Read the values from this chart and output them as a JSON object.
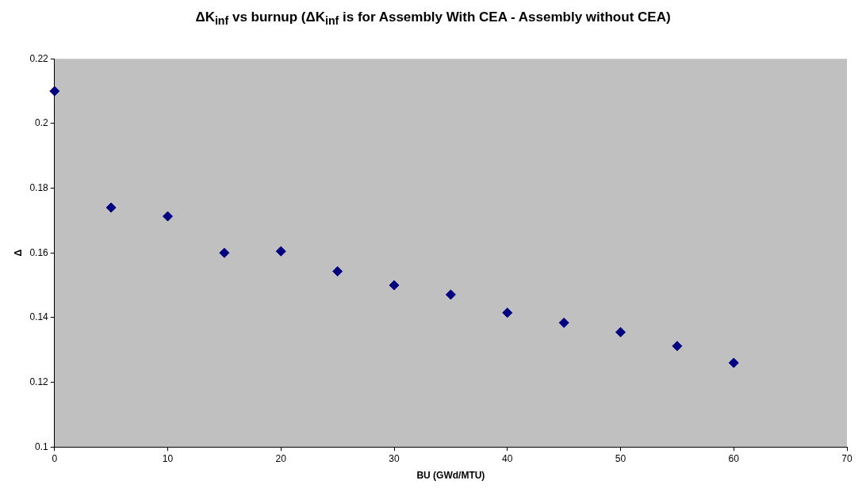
{
  "chart_data": {
    "type": "scatter",
    "title": "ΔK$_{inf}$ vs burnup (ΔK$_{inf}$ is for Assembly With CEA - Assembly without CEA)",
    "xlabel": "BU (GWd/MTU)",
    "ylabel": "Δ",
    "x": [
      0,
      5,
      10,
      15,
      20,
      25,
      30,
      35,
      40,
      45,
      50,
      55,
      60
    ],
    "series": [
      {
        "color": "#000080",
        "values": [
          0.21,
          0.174,
          0.1713,
          0.16,
          0.1605,
          0.1543,
          0.15,
          0.1471,
          0.1415,
          0.1384,
          0.1355,
          0.1312,
          0.126
        ]
      }
    ],
    "xlim": [
      0,
      70
    ],
    "xticks": [
      0,
      10,
      20,
      30,
      40,
      50,
      60,
      70
    ],
    "ylim": [
      0.1,
      0.22
    ],
    "yticks": [
      {
        "value": 0.1,
        "label": "0.1"
      },
      0.12,
      0.14,
      0.16,
      0.18,
      {
        "value": 0.2,
        "label": "0.2"
      },
      0.22
    ],
    "grid": false,
    "legend": false,
    "marker": "diamond"
  }
}
